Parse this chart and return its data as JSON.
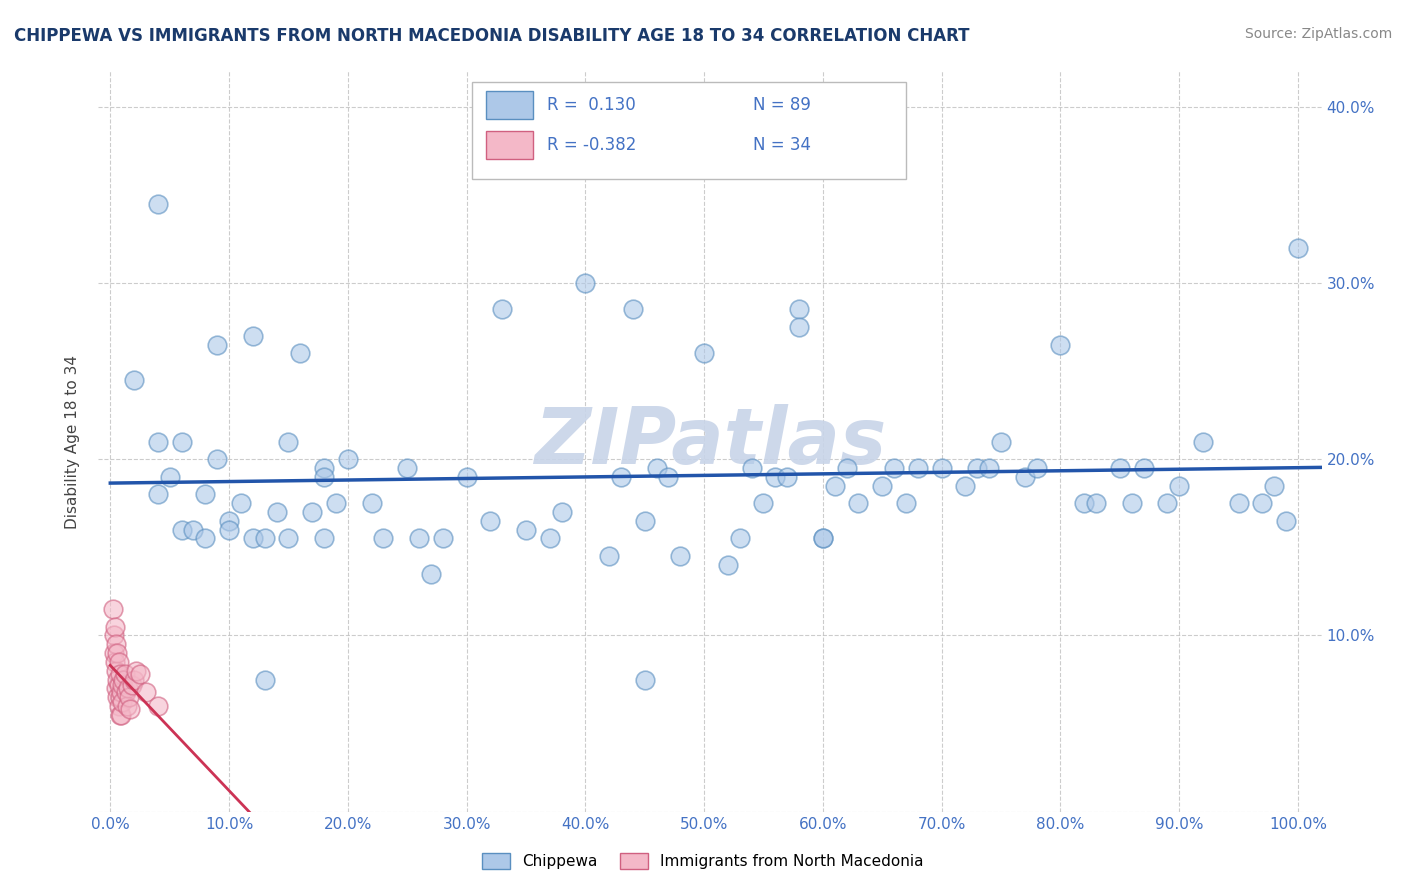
{
  "title": "CHIPPEWA VS IMMIGRANTS FROM NORTH MACEDONIA DISABILITY AGE 18 TO 34 CORRELATION CHART",
  "source": "Source: ZipAtlas.com",
  "ylabel": "Disability Age 18 to 34",
  "xlim": [
    -0.01,
    1.02
  ],
  "ylim": [
    0.0,
    0.42
  ],
  "xticks": [
    0.0,
    0.1,
    0.2,
    0.3,
    0.4,
    0.5,
    0.6,
    0.7,
    0.8,
    0.9,
    1.0
  ],
  "xticklabels": [
    "0.0%",
    "10.0%",
    "20.0%",
    "30.0%",
    "40.0%",
    "50.0%",
    "60.0%",
    "70.0%",
    "80.0%",
    "90.0%",
    "100.0%"
  ],
  "yticks": [
    0.0,
    0.1,
    0.2,
    0.3,
    0.4
  ],
  "yticklabels_left": [
    "",
    "",
    "",
    "",
    ""
  ],
  "yticklabels_right": [
    "",
    "10.0%",
    "20.0%",
    "30.0%",
    "40.0%"
  ],
  "chippewa_color": "#adc8e8",
  "chippewa_edge_color": "#5a8fc0",
  "macedonia_color": "#f4b8c8",
  "macedonia_edge_color": "#d06080",
  "chippewa_line_color": "#2255aa",
  "macedonia_line_color": "#cc3355",
  "watermark_color": "#c8d4e8",
  "background_color": "#ffffff",
  "grid_color": "#c0c0c0",
  "title_color": "#1a3a6b",
  "tick_color": "#4472c4",
  "legend_text_color": "#4472c4",
  "chippewa_x": [
    0.02,
    0.04,
    0.04,
    0.05,
    0.06,
    0.06,
    0.07,
    0.08,
    0.08,
    0.09,
    0.1,
    0.1,
    0.11,
    0.12,
    0.12,
    0.13,
    0.14,
    0.15,
    0.15,
    0.16,
    0.17,
    0.18,
    0.18,
    0.19,
    0.2,
    0.22,
    0.23,
    0.25,
    0.26,
    0.27,
    0.28,
    0.3,
    0.32,
    0.33,
    0.35,
    0.37,
    0.38,
    0.4,
    0.42,
    0.43,
    0.44,
    0.45,
    0.46,
    0.47,
    0.48,
    0.5,
    0.52,
    0.53,
    0.54,
    0.55,
    0.56,
    0.57,
    0.58,
    0.6,
    0.61,
    0.62,
    0.63,
    0.65,
    0.66,
    0.67,
    0.68,
    0.7,
    0.72,
    0.73,
    0.74,
    0.75,
    0.77,
    0.78,
    0.8,
    0.82,
    0.83,
    0.85,
    0.86,
    0.87,
    0.89,
    0.9,
    0.92,
    0.95,
    0.97,
    0.98,
    0.99,
    1.0,
    0.04,
    0.09,
    0.13,
    0.18,
    0.45,
    0.58,
    0.6
  ],
  "chippewa_y": [
    0.245,
    0.21,
    0.18,
    0.19,
    0.16,
    0.21,
    0.16,
    0.18,
    0.155,
    0.2,
    0.165,
    0.16,
    0.175,
    0.27,
    0.155,
    0.155,
    0.17,
    0.21,
    0.155,
    0.26,
    0.17,
    0.195,
    0.155,
    0.175,
    0.2,
    0.175,
    0.155,
    0.195,
    0.155,
    0.135,
    0.155,
    0.19,
    0.165,
    0.285,
    0.16,
    0.155,
    0.17,
    0.3,
    0.145,
    0.19,
    0.285,
    0.165,
    0.195,
    0.19,
    0.145,
    0.26,
    0.14,
    0.155,
    0.195,
    0.175,
    0.19,
    0.19,
    0.285,
    0.155,
    0.185,
    0.195,
    0.175,
    0.185,
    0.195,
    0.175,
    0.195,
    0.195,
    0.185,
    0.195,
    0.195,
    0.21,
    0.19,
    0.195,
    0.265,
    0.175,
    0.175,
    0.195,
    0.175,
    0.195,
    0.175,
    0.185,
    0.21,
    0.175,
    0.175,
    0.185,
    0.165,
    0.32,
    0.345,
    0.265,
    0.075,
    0.19,
    0.075,
    0.275,
    0.155
  ],
  "macedonia_x": [
    0.002,
    0.003,
    0.003,
    0.004,
    0.004,
    0.005,
    0.005,
    0.005,
    0.006,
    0.006,
    0.006,
    0.007,
    0.007,
    0.007,
    0.008,
    0.008,
    0.008,
    0.009,
    0.009,
    0.01,
    0.01,
    0.011,
    0.012,
    0.013,
    0.014,
    0.015,
    0.016,
    0.017,
    0.018,
    0.02,
    0.022,
    0.025,
    0.03,
    0.04
  ],
  "macedonia_y": [
    0.115,
    0.1,
    0.09,
    0.105,
    0.085,
    0.095,
    0.08,
    0.07,
    0.09,
    0.075,
    0.065,
    0.085,
    0.072,
    0.06,
    0.078,
    0.065,
    0.055,
    0.068,
    0.055,
    0.072,
    0.062,
    0.075,
    0.078,
    0.068,
    0.06,
    0.07,
    0.065,
    0.058,
    0.072,
    0.075,
    0.08,
    0.078,
    0.068,
    0.06
  ]
}
